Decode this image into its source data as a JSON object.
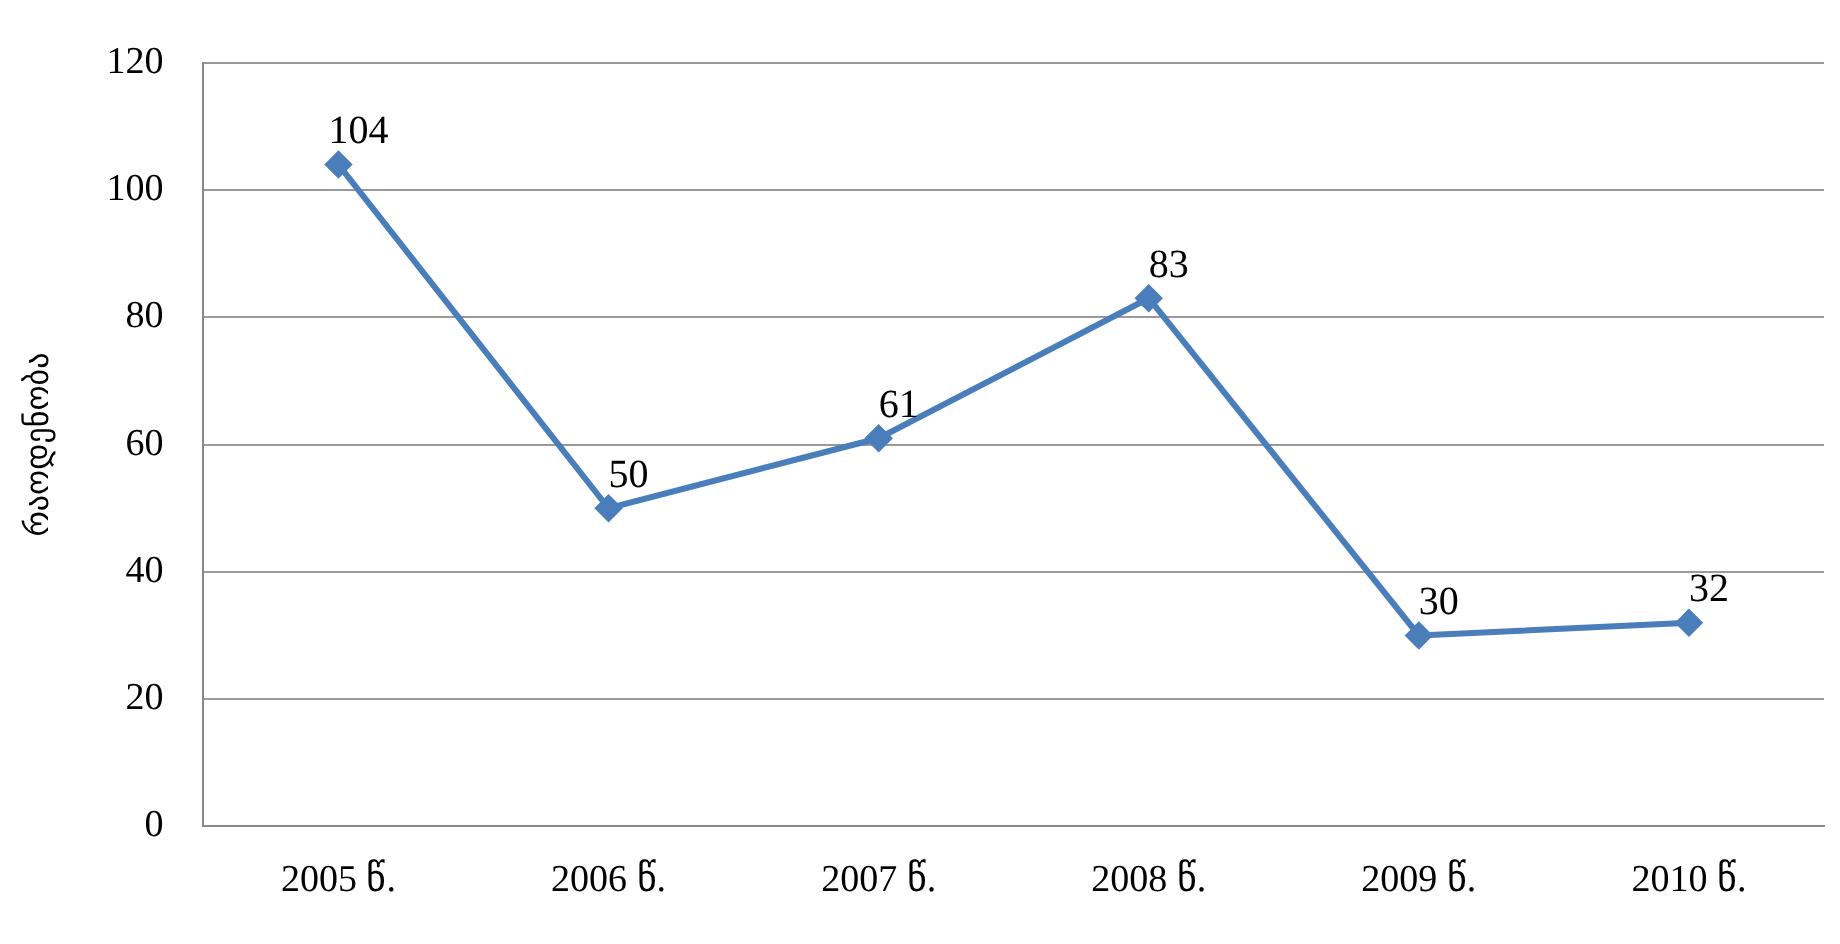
{
  "chart_data": {
    "type": "line",
    "ylabel": "რაოდენობა",
    "categories": [
      "2005 წ.",
      "2006 წ.",
      "2007 წ.",
      "2008 წ.",
      "2009 წ.",
      "2010 წ."
    ],
    "series": [
      {
        "color": "#4a7ebb",
        "values": [
          104,
          50,
          61,
          83,
          30,
          32
        ]
      }
    ],
    "ylim": [
      0,
      120
    ],
    "yticks": [
      0,
      20,
      40,
      60,
      80,
      100,
      120
    ],
    "grid": "y",
    "legend": false,
    "marker": "diamond",
    "data_labels": true
  }
}
